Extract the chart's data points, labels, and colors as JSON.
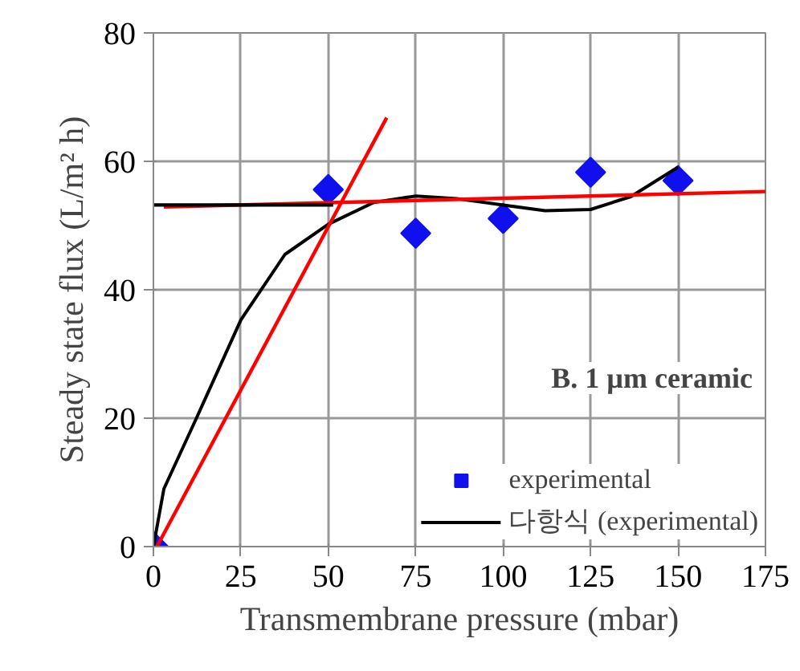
{
  "chart_data": {
    "type": "line",
    "xlabel": "Transmembrane pressure (mbar)",
    "ylabel": "Steady state flux (L/m² h)",
    "xlim": [
      0,
      175
    ],
    "xticks": [
      0,
      25,
      50,
      75,
      100,
      125,
      150,
      175
    ],
    "ylim": [
      0,
      80
    ],
    "yticks": [
      0,
      20,
      40,
      60,
      80
    ],
    "grid": true,
    "legend": "bottom right",
    "annotations": [
      "B. 1 µm ceramic"
    ],
    "series": [
      {
        "name": "experimental",
        "type": "scatter",
        "marker": "diamond",
        "color": "#1010ee",
        "x": [
          0,
          50,
          75,
          100,
          125,
          150
        ],
        "values": [
          0,
          55.6,
          48.8,
          51.1,
          58.3,
          57.0
        ]
      },
      {
        "name": "다항식 (experimental)",
        "color": "#000000",
        "x": [
          0,
          3,
          12.3,
          25,
          37.6,
          50,
          63,
          75,
          86.7,
          100,
          112,
          125,
          136.5,
          150
        ],
        "values": [
          0,
          9,
          20,
          35.3,
          45.5,
          50.2,
          53.6,
          54.6,
          54.2,
          53.2,
          52.3,
          52.5,
          54.5,
          59.1
        ]
      },
      {
        "color": "#ff0000",
        "x": [
          1,
          66.7
        ],
        "values": [
          0,
          66.8
        ]
      },
      {
        "color": "#ff0000",
        "x": [
          3,
          175
        ],
        "values": [
          52.9,
          55.3
        ]
      },
      {
        "color": "#000000",
        "x": [
          51.4,
          0
        ],
        "values": [
          53.2,
          53.2
        ]
      }
    ]
  }
}
